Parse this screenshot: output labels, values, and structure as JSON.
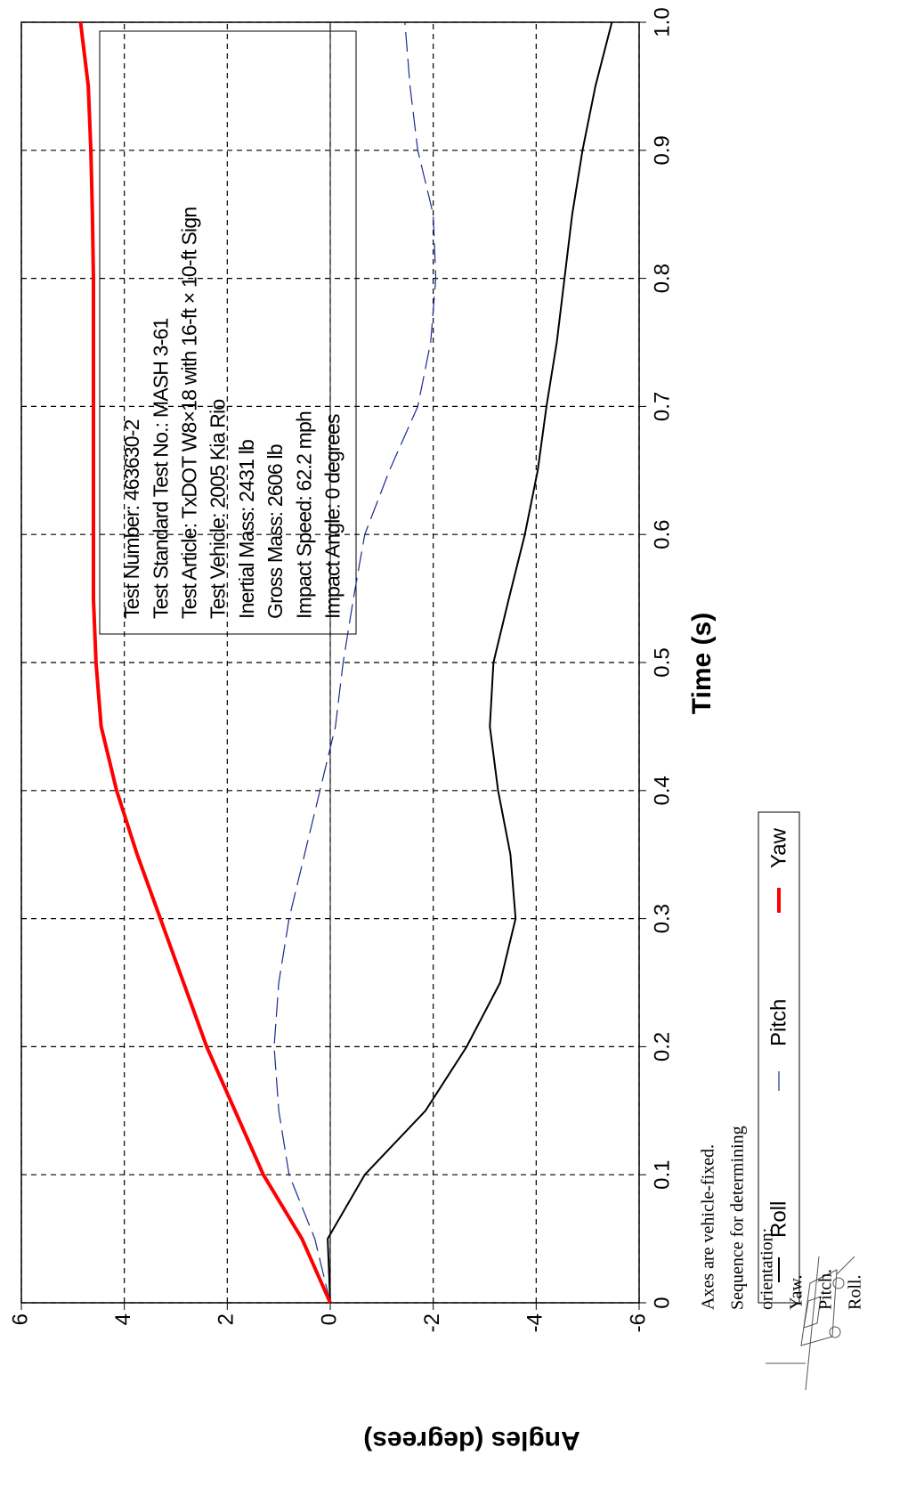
{
  "chart_data": {
    "type": "line",
    "x_label": "Time (s)",
    "y_label": "Angles (degrees)",
    "x": [
      0,
      0.05,
      0.1,
      0.15,
      0.2,
      0.25,
      0.3,
      0.35,
      0.4,
      0.45,
      0.5,
      0.55,
      0.6,
      0.65,
      0.7,
      0.75,
      0.8,
      0.85,
      0.9,
      0.95,
      1
    ],
    "series": [
      {
        "name": "Roll",
        "color": "#000000",
        "dash": false,
        "width": 2,
        "values": [
          0,
          0.05,
          -0.67,
          -1.85,
          -2.65,
          -3.3,
          -3.6,
          -3.5,
          -3.26,
          -3.1,
          -3.17,
          -3.47,
          -3.78,
          -4.03,
          -4.2,
          -4.4,
          -4.55,
          -4.7,
          -4.9,
          -5.15,
          -5.47
        ]
      },
      {
        "name": "Pitch",
        "color": "#1a2a8c",
        "dash": true,
        "width": 1.2,
        "values": [
          0,
          0.3,
          0.8,
          1.0,
          1.09,
          1.0,
          0.8,
          0.5,
          0.2,
          -0.1,
          -0.25,
          -0.45,
          -0.67,
          -1.15,
          -1.7,
          -1.95,
          -2.05,
          -2.0,
          -1.7,
          -1.55,
          -1.45
        ]
      },
      {
        "name": "Yaw",
        "color": "#ff0000",
        "dash": false,
        "width": 4,
        "values": [
          0,
          0.55,
          1.3,
          1.85,
          2.4,
          2.85,
          3.3,
          3.75,
          4.15,
          4.45,
          4.55,
          4.6,
          4.6,
          4.6,
          4.6,
          4.6,
          4.6,
          4.62,
          4.65,
          4.7,
          4.85
        ]
      }
    ],
    "xlim": [
      0,
      1
    ],
    "ylim": [
      -6,
      6
    ],
    "xticks": [
      0,
      0.1,
      0.2,
      0.3,
      0.4,
      0.5,
      0.6,
      0.7,
      0.8,
      0.9,
      {
        "value": 1,
        "label": "1.0"
      }
    ],
    "yticks": [
      -6,
      -4,
      -2,
      0,
      2,
      4,
      6
    ],
    "grid": true,
    "zero_line": true,
    "legend_position": "bottom",
    "annotation": [
      "Test Number: 463630-2",
      "Test Standard Test No.: MASH 3-61",
      "Test Article: TxDOT W8×18 with 16-ft × 10-ft Sign",
      "Test Vehicle: 2005 Kia Rio",
      "Inertial Mass: 2431 lb",
      "Gross Mass: 2606 lb",
      "Impact Speed: 62.2 mph",
      "Impact Angle: 0 degrees"
    ],
    "note": [
      "Axes are vehicle-fixed.",
      "Sequence for determining",
      "orientation:",
      "Yaw.",
      "Pitch.",
      "Roll."
    ]
  }
}
